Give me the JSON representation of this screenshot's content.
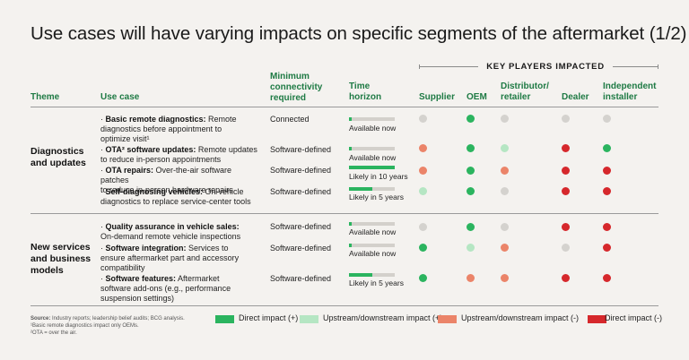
{
  "title": "Use cases will have varying impacts on specific segments of the aftermarket (1/2)",
  "headers": {
    "theme": "Theme",
    "use_case": "Use case",
    "connectivity": [
      "Minimum",
      "connectivity",
      "required"
    ],
    "time_horizon": [
      "Time",
      "horizon"
    ],
    "key_players": "KEY PLAYERS IMPACTED",
    "players": [
      {
        "lines": [
          "Supplier"
        ]
      },
      {
        "lines": [
          "OEM"
        ]
      },
      {
        "lines": [
          "Distributor/",
          "retailer"
        ]
      },
      {
        "lines": [
          "Dealer"
        ]
      },
      {
        "lines": [
          "Independent",
          "installer"
        ]
      }
    ]
  },
  "colors": {
    "direct": "#2bb45f",
    "updown_pos": "#b5e6c3",
    "updown_neg": "#eb8469",
    "direct_neg": "#d6282c",
    "none": "#d4d2ce"
  },
  "groups": [
    {
      "theme": [
        "Diagnostics",
        "and updates"
      ],
      "rows": [
        {
          "name": "Basic remote diagnostics:",
          "desc_lines": [
            " Remote",
            "diagnostics before appointment to",
            "optimize visit¹"
          ],
          "connectivity": "Connected",
          "horizon": "Available now",
          "fill": 0.06,
          "impacts": [
            "none",
            "direct",
            "none",
            "none",
            "none"
          ]
        },
        {
          "name": "OTA² software updates:",
          "desc_lines": [
            " Remote updates",
            "to reduce in-person appointments"
          ],
          "connectivity": "Software-defined",
          "horizon": "Available now",
          "fill": 0.06,
          "impacts": [
            "updown_neg",
            "direct",
            "updown_pos",
            "direct_neg",
            "direct"
          ]
        },
        {
          "name": "OTA repairs:",
          "desc_lines": [
            " Over-the-air software patches",
            "to reduce in-person hardware repairs"
          ],
          "connectivity": "Software-defined",
          "horizon": "Likely in 10 years",
          "fill": 1.0,
          "impacts": [
            "updown_neg",
            "direct",
            "updown_neg",
            "direct_neg",
            "direct_neg"
          ]
        },
        {
          "name": "Self-diagnosing vehicles:",
          "desc_lines": [
            " On-vehicle",
            "diagnostics to replace service-center tools"
          ],
          "connectivity": "Software-defined",
          "horizon": "Likely in 5 years",
          "fill": 0.5,
          "impacts": [
            "updown_pos",
            "direct",
            "none",
            "direct_neg",
            "direct_neg"
          ]
        }
      ]
    },
    {
      "theme": [
        "New services",
        "and business",
        "models"
      ],
      "rows": [
        {
          "name": "Quality assurance in vehicle sales:",
          "desc_lines": [
            "",
            "On-demand remote vehicle inspections"
          ],
          "connectivity": "Software-defined",
          "horizon": "Available now",
          "fill": 0.06,
          "impacts": [
            "none",
            "direct",
            "none",
            "direct_neg",
            "direct_neg"
          ]
        },
        {
          "name": "Software integration:",
          "desc_lines": [
            " Services to",
            "ensure aftermarket part and accessory",
            "compatibility"
          ],
          "connectivity": "Software-defined",
          "horizon": "Available now",
          "fill": 0.06,
          "impacts": [
            "direct",
            "updown_pos",
            "updown_neg",
            "none",
            "direct_neg"
          ]
        },
        {
          "name": "Software features:",
          "desc_lines": [
            " Aftermarket",
            "software add-ons (e.g., performance",
            "suspension settings)"
          ],
          "connectivity": "Software-defined",
          "horizon": "Likely in 5 years",
          "fill": 0.5,
          "impacts": [
            "direct",
            "updown_neg",
            "updown_neg",
            "direct_neg",
            "direct_neg"
          ]
        }
      ]
    }
  ],
  "notes": {
    "source_label": "Source:",
    "source_text": " Industry reports; leadership belief audits; BCG analysis.",
    "note1": "¹Basic remote diagnostics impact only OEMs.",
    "note2": "²OTA = over the air."
  },
  "legend": [
    {
      "key": "direct",
      "label": "Direct impact (+)"
    },
    {
      "key": "updown_pos",
      "label": "Upstream/downstream impact (+)"
    },
    {
      "key": "updown_neg",
      "label": "Upstream/downstream impact (-)"
    },
    {
      "key": "direct_neg",
      "label": "Direct impact (-)"
    }
  ]
}
